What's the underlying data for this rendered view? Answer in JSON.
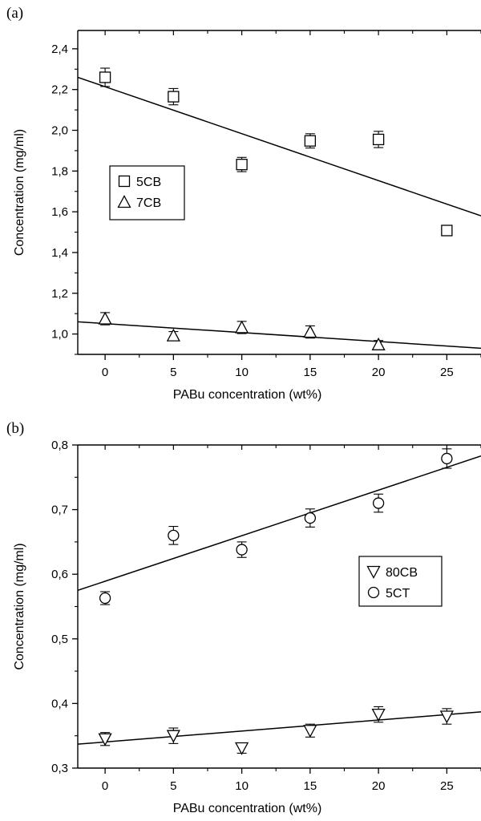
{
  "chart_data": [
    {
      "panel": "(a)",
      "type": "scatter",
      "xlabel": "PABu concentration (wt%)",
      "ylabel": "Concentration (mg/ml)",
      "xlim": [
        -2,
        27.5
      ],
      "ylim": [
        0.9,
        2.49
      ],
      "xticks": [
        "0",
        "5",
        "10",
        "15",
        "20",
        "25"
      ],
      "yticks": [
        "1,0",
        "1,2",
        "1,4",
        "1,6",
        "1,8",
        "2,0",
        "2,2",
        "2,4"
      ],
      "legend_position": "center-left",
      "series": [
        {
          "name": "5CB",
          "marker": "square",
          "x": [
            0,
            5,
            10,
            15,
            20,
            25
          ],
          "y": [
            2.26,
            2.165,
            1.832,
            1.948,
            1.955,
            1.508
          ],
          "err": [
            0.045,
            0.04,
            0.035,
            0.035,
            0.04,
            0.02
          ],
          "fit": {
            "x": [
              -2,
              27.5
            ],
            "y": [
              2.26,
              1.58
            ]
          }
        },
        {
          "name": "7CB",
          "marker": "triangle-up",
          "x": [
            0,
            5,
            10,
            15,
            20
          ],
          "y": [
            1.075,
            0.992,
            1.032,
            1.01,
            0.948
          ],
          "err": [
            0.03,
            0.02,
            0.03,
            0.03,
            0.02
          ],
          "fit": {
            "x": [
              -2,
              27.5
            ],
            "y": [
              1.06,
              0.93
            ]
          }
        }
      ]
    },
    {
      "panel": "(b)",
      "type": "scatter",
      "xlabel": "PABu concentration (wt%)",
      "ylabel": "Concentration (mg/ml)",
      "xlim": [
        -2,
        27.5
      ],
      "ylim": [
        0.3,
        0.8
      ],
      "xticks": [
        "0",
        "5",
        "10",
        "15",
        "20",
        "25"
      ],
      "yticks": [
        "0,3",
        "0,4",
        "0,5",
        "0,6",
        "0,7",
        "0,8"
      ],
      "legend_position": "center-right",
      "series": [
        {
          "name": "80CB",
          "marker": "triangle-down",
          "x": [
            0,
            5,
            10,
            15,
            20,
            25
          ],
          "y": [
            0.345,
            0.35,
            0.331,
            0.358,
            0.383,
            0.38
          ],
          "err": [
            0.01,
            0.012,
            0.008,
            0.01,
            0.012,
            0.012
          ],
          "fit": {
            "x": [
              -2,
              27.5
            ],
            "y": [
              0.337,
              0.387
            ]
          }
        },
        {
          "name": "5CT",
          "marker": "circle",
          "x": [
            0,
            5,
            10,
            15,
            20,
            25
          ],
          "y": [
            0.563,
            0.66,
            0.638,
            0.687,
            0.71,
            0.779
          ],
          "err": [
            0.01,
            0.014,
            0.012,
            0.014,
            0.014,
            0.015
          ],
          "fit": {
            "x": [
              -2,
              27.5
            ],
            "y": [
              0.575,
              0.783
            ]
          }
        }
      ]
    }
  ]
}
